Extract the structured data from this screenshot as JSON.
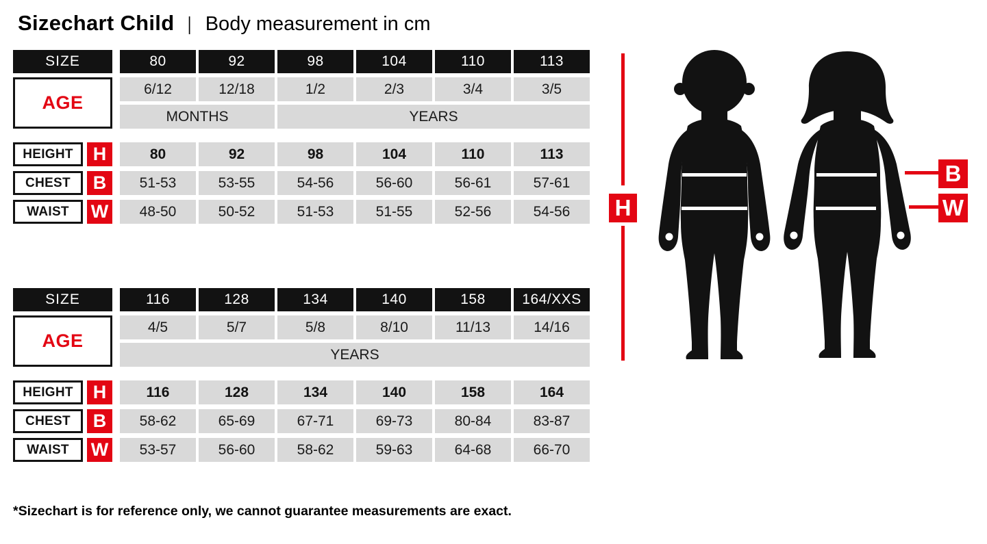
{
  "title": {
    "main": "Sizechart Child",
    "separator": "|",
    "subtitle": "Body measurement in cm"
  },
  "labels": {
    "size": "SIZE",
    "age": "AGE",
    "months": "MONTHS",
    "years": "YEARS",
    "height": "HEIGHT",
    "chest": "CHEST",
    "waist": "WAIST"
  },
  "measure_letters": {
    "height": "H",
    "chest": "B",
    "waist": "W"
  },
  "tables": [
    {
      "sizes": [
        "80",
        "92",
        "98",
        "104",
        "110",
        "113"
      ],
      "ages": [
        "6/12",
        "12/18",
        "1/2",
        "2/3",
        "3/4",
        "3/5"
      ],
      "units": [
        {
          "label": "MONTHS",
          "span": 2
        },
        {
          "label": "YEARS",
          "span": 4
        }
      ],
      "height": [
        "80",
        "92",
        "98",
        "104",
        "110",
        "113"
      ],
      "chest": [
        "51-53",
        "53-55",
        "54-56",
        "56-60",
        "56-61",
        "57-61"
      ],
      "waist": [
        "48-50",
        "50-52",
        "51-53",
        "51-55",
        "52-56",
        "54-56"
      ]
    },
    {
      "sizes": [
        "116",
        "128",
        "134",
        "140",
        "158",
        "164/XXS"
      ],
      "ages": [
        "4/5",
        "5/7",
        "5/8",
        "8/10",
        "11/13",
        "14/16"
      ],
      "units": [
        {
          "label": "YEARS",
          "span": 6
        }
      ],
      "height": [
        "116",
        "128",
        "134",
        "140",
        "158",
        "164"
      ],
      "chest": [
        "58-62",
        "65-69",
        "67-71",
        "69-73",
        "80-84",
        "83-87"
      ],
      "waist": [
        "53-57",
        "56-60",
        "58-62",
        "59-63",
        "64-68",
        "66-70"
      ]
    }
  ],
  "figure": {
    "height_marker": "H",
    "chest_marker": "B",
    "waist_marker": "W"
  },
  "footer": "*Sizechart is for reference only, we cannot guarantee measurements are exact.",
  "colors": {
    "accent_red": "#e30613",
    "cell_gray": "#d9d9d9",
    "header_black": "#121212"
  }
}
